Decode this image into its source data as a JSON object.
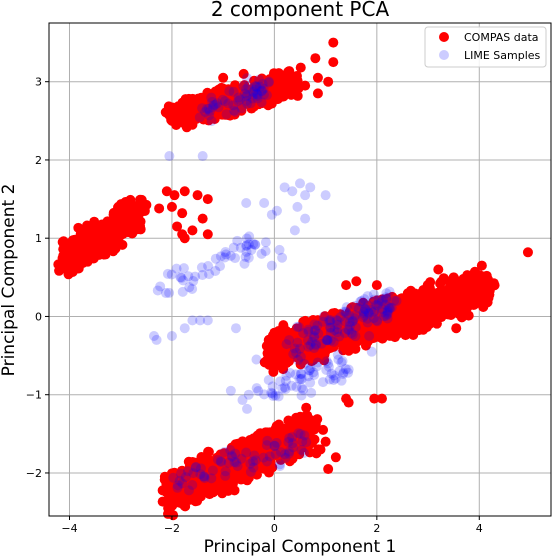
{
  "chart_data": {
    "type": "scatter",
    "title": "2 component PCA",
    "xlabel": "Principal Component 1",
    "ylabel": "Principal Component 2",
    "xlim": [
      -4.4,
      5.4
    ],
    "ylim": [
      -2.55,
      3.75
    ],
    "x_ticks": [
      -4,
      -2,
      0,
      2,
      4
    ],
    "y_ticks": [
      -2,
      -1,
      0,
      1,
      2,
      3
    ],
    "grid": true,
    "legend_position": "top-right",
    "series": [
      {
        "name": "COMPAS data",
        "color": "#ff0000",
        "clusters": [
          {
            "x_from": -2.0,
            "x_to": 0.4,
            "y_from": 2.55,
            "y_to": 3.0,
            "count": 520
          },
          {
            "x_from": -4.1,
            "x_to": -2.6,
            "y_from": 0.72,
            "y_to": 1.35,
            "count": 320
          },
          {
            "x_from": -0.1,
            "x_to": 4.2,
            "y_from": -0.45,
            "y_to": 0.35,
            "count": 900
          },
          {
            "x_from": -2.1,
            "x_to": 0.8,
            "y_from": -2.25,
            "y_to": -1.45,
            "count": 600
          }
        ],
        "points": [
          {
            "x": 1.15,
            "y": 3.5
          },
          {
            "x": 0.8,
            "y": 3.3
          },
          {
            "x": 1.15,
            "y": 3.25
          },
          {
            "x": 0.85,
            "y": 3.05
          },
          {
            "x": 1.05,
            "y": 3.0
          },
          {
            "x": -2.1,
            "y": 1.6
          },
          {
            "x": -1.95,
            "y": 1.55
          },
          {
            "x": -1.75,
            "y": 1.6
          },
          {
            "x": -1.5,
            "y": 1.55
          },
          {
            "x": -1.3,
            "y": 1.5
          },
          {
            "x": -1.8,
            "y": 1.32
          },
          {
            "x": -1.4,
            "y": 1.25
          },
          {
            "x": -1.3,
            "y": 1.05
          },
          {
            "x": -1.8,
            "y": 1.05
          },
          {
            "x": -1.9,
            "y": 1.15
          },
          {
            "x": -2.0,
            "y": 1.4
          },
          {
            "x": -2.25,
            "y": 1.38
          },
          {
            "x": -1.75,
            "y": 1.0
          },
          {
            "x": -1.6,
            "y": 1.1
          },
          {
            "x": 4.05,
            "y": 0.65
          },
          {
            "x": 4.0,
            "y": 0.35
          },
          {
            "x": 4.15,
            "y": 0.35
          },
          {
            "x": 4.95,
            "y": 0.82
          },
          {
            "x": 3.2,
            "y": 0.6
          },
          {
            "x": 3.5,
            "y": 0.5
          },
          {
            "x": 3.8,
            "y": 0.45
          },
          {
            "x": 3.6,
            "y": 0.3
          },
          {
            "x": 3.9,
            "y": 0.15
          },
          {
            "x": 3.55,
            "y": -0.15
          },
          {
            "x": 1.95,
            "y": -1.05
          },
          {
            "x": 2.1,
            "y": -1.05
          },
          {
            "x": 1.45,
            "y": -1.1
          },
          {
            "x": 1.4,
            "y": -1.05
          },
          {
            "x": 0.95,
            "y": -1.45
          },
          {
            "x": 1.0,
            "y": -1.6
          },
          {
            "x": 0.9,
            "y": -1.7
          },
          {
            "x": 1.2,
            "y": -1.8
          },
          {
            "x": 1.05,
            "y": -1.95
          },
          {
            "x": -2.05,
            "y": -2.2
          },
          {
            "x": -1.0,
            "y": 3.05
          },
          {
            "x": -0.6,
            "y": 3.1
          },
          {
            "x": -1.6,
            "y": 2.45
          },
          {
            "x": -2.0,
            "y": 2.5
          },
          {
            "x": 0.6,
            "y": 2.95
          },
          {
            "x": 0.85,
            "y": 2.85
          },
          {
            "x": 2.0,
            "y": 0.4
          },
          {
            "x": 2.3,
            "y": 0.25
          },
          {
            "x": 0.1,
            "y": -0.35
          },
          {
            "x": 0.4,
            "y": -0.2
          },
          {
            "x": 1.4,
            "y": 0.4
          },
          {
            "x": 1.6,
            "y": 0.45
          }
        ]
      },
      {
        "name": "LIME Samples",
        "color": "#0000ff",
        "alpha": 0.2,
        "clusters": [
          {
            "x_from": -2.2,
            "x_to": -0.2,
            "y_from": 0.35,
            "y_to": 0.9,
            "count": 45
          },
          {
            "x_from": -1.45,
            "x_to": -0.1,
            "y_from": 2.6,
            "y_to": 2.95,
            "count": 60
          },
          {
            "x_from": -1.9,
            "x_to": 0.7,
            "y_from": -2.1,
            "y_to": -1.6,
            "count": 70
          },
          {
            "x_from": -0.6,
            "x_to": 1.5,
            "y_from": -1.1,
            "y_to": -0.6,
            "count": 60
          },
          {
            "x_from": 0.3,
            "y_from": -0.4,
            "x_to": 2.3,
            "y_to": 0.2,
            "count": 120
          }
        ],
        "points": [
          {
            "x": -2.05,
            "y": 2.05
          },
          {
            "x": -1.4,
            "y": 2.05
          },
          {
            "x": 0.2,
            "y": 1.65
          },
          {
            "x": 0.35,
            "y": 1.6
          },
          {
            "x": 0.5,
            "y": 1.7
          },
          {
            "x": 0.6,
            "y": 1.55
          },
          {
            "x": 0.7,
            "y": 1.65
          },
          {
            "x": 1.0,
            "y": 1.55
          },
          {
            "x": -0.55,
            "y": 1.45
          },
          {
            "x": -0.2,
            "y": 1.45
          },
          {
            "x": 0.05,
            "y": 1.35
          },
          {
            "x": -0.05,
            "y": 1.3
          },
          {
            "x": 0.45,
            "y": 1.4
          },
          {
            "x": 0.6,
            "y": 1.25
          },
          {
            "x": 0.4,
            "y": 1.1
          },
          {
            "x": -0.45,
            "y": 0.85
          },
          {
            "x": -0.55,
            "y": 0.9
          },
          {
            "x": -0.5,
            "y": 0.75
          },
          {
            "x": -0.25,
            "y": 0.8
          },
          {
            "x": 0.1,
            "y": 0.85
          },
          {
            "x": 0.15,
            "y": 0.75
          },
          {
            "x": -2.35,
            "y": -0.25
          },
          {
            "x": -2.3,
            "y": -0.3
          },
          {
            "x": -2.0,
            "y": -0.25
          },
          {
            "x": -1.75,
            "y": -0.15
          },
          {
            "x": -1.6,
            "y": -0.05
          },
          {
            "x": -1.45,
            "y": -0.05
          },
          {
            "x": -1.3,
            "y": -0.05
          },
          {
            "x": -0.75,
            "y": -0.15
          },
          {
            "x": -0.05,
            "y": 0.65
          },
          {
            "x": -0.35,
            "y": -0.55
          },
          {
            "x": 2.0,
            "y": -0.05
          },
          {
            "x": 1.85,
            "y": -0.25
          },
          {
            "x": 1.9,
            "y": -0.45
          },
          {
            "x": 1.25,
            "y": -0.55
          },
          {
            "x": 1.05,
            "y": -0.6
          },
          {
            "x": -0.85,
            "y": -0.95
          },
          {
            "x": -0.5,
            "y": -1.0
          }
        ]
      }
    ],
    "legend": [
      {
        "label": "COMPAS data",
        "color": "#ff0000",
        "alpha": 1.0
      },
      {
        "label": "LIME Samples",
        "color": "#0000ff",
        "alpha": 0.2
      }
    ]
  }
}
